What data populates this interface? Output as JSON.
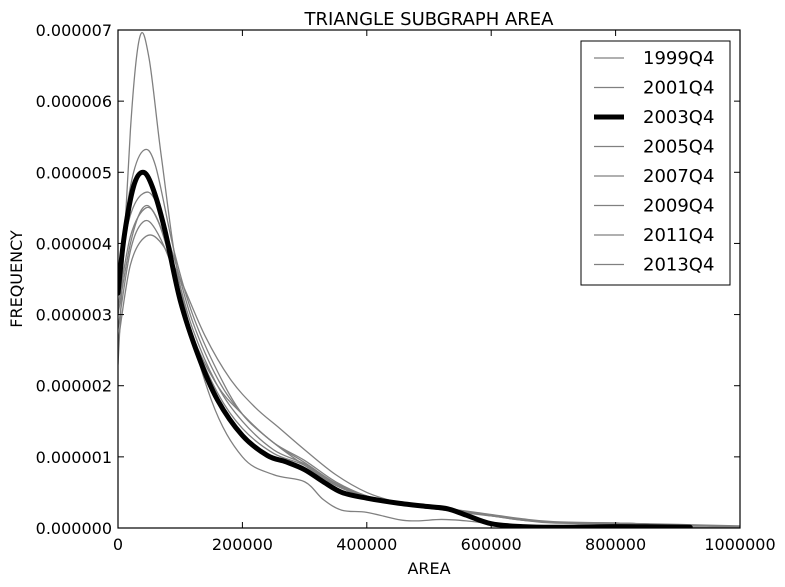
{
  "chart_data": {
    "type": "line",
    "title": "TRIANGLE SUBGRAPH AREA",
    "xlabel": "AREA",
    "ylabel": "FREQUENCY",
    "xlim": [
      0,
      1000000
    ],
    "ylim": [
      0,
      7e-06
    ],
    "x_ticks": [
      0,
      200000,
      400000,
      600000,
      800000,
      1000000
    ],
    "x_tick_labels": [
      "0",
      "200000",
      "400000",
      "600000",
      "800000",
      "1000000"
    ],
    "y_ticks": [
      0,
      1e-06,
      2e-06,
      3e-06,
      4e-06,
      5e-06,
      6e-06,
      7e-06
    ],
    "y_tick_labels": [
      "0.000000",
      "0.000001",
      "0.000002",
      "0.000003",
      "0.000004",
      "0.000005",
      "0.000006",
      "0.000007"
    ],
    "legend_position": "top-right",
    "highlight_color": "#000000",
    "base_color": "#808080",
    "series": [
      {
        "name": "1999Q4",
        "highlight": false,
        "x": [
          0,
          20000,
          35000,
          50000,
          70000,
          100000,
          150000,
          200000,
          250000,
          300000,
          330000,
          360000,
          400000,
          450000,
          480000,
          520000,
          560000,
          600000,
          650000,
          700000,
          800000,
          900000,
          1000000
        ],
        "y": [
          2.3e-06,
          5.6e-06,
          6.9e-06,
          6.6e-06,
          5.2e-06,
          3.4e-06,
          1.8e-06,
          1e-06,
          7.5e-07,
          6.5e-07,
          4e-07,
          2.5e-07,
          2.2e-07,
          1.2e-07,
          1e-07,
          1.2e-07,
          1e-07,
          6e-08,
          3e-08,
          2e-08,
          1e-08,
          1e-08,
          1e-08
        ]
      },
      {
        "name": "2001Q4",
        "highlight": false,
        "x": [
          0,
          20000,
          40000,
          60000,
          90000,
          120000,
          160000,
          200000,
          250000,
          300000,
          350000,
          400000,
          450000,
          500000,
          550000,
          600000,
          650000,
          700000,
          800000,
          900000,
          1000000
        ],
        "y": [
          3.5e-06,
          4.8e-06,
          5.3e-06,
          5.1e-06,
          3.9e-06,
          3e-06,
          2.2e-06,
          1.6e-06,
          1.2e-06,
          8.8e-07,
          6e-07,
          4.3e-07,
          3.4e-07,
          2.8e-07,
          2.2e-07,
          1.7e-07,
          1.2e-07,
          8e-08,
          6e-08,
          4e-08,
          2e-08
        ]
      },
      {
        "name": "2003Q4",
        "highlight": true,
        "x": [
          0,
          10000,
          25000,
          40000,
          55000,
          75000,
          100000,
          130000,
          160000,
          200000,
          240000,
          270000,
          300000,
          330000,
          360000,
          400000,
          450000,
          500000,
          530000,
          560000,
          600000,
          650000,
          700000,
          800000,
          920000
        ],
        "y": [
          3.3e-06,
          4.1e-06,
          4.8e-06,
          5e-06,
          4.8e-06,
          4.2e-06,
          3.2e-06,
          2.4e-06,
          1.8e-06,
          1.3e-06,
          1.02e-06,
          9.3e-07,
          8.2e-07,
          6.5e-07,
          5e-07,
          4.2e-07,
          3.5e-07,
          3e-07,
          2.7e-07,
          1.8e-07,
          6e-08,
          2e-08,
          1e-08,
          2e-08,
          1e-08
        ]
      },
      {
        "name": "2005Q4",
        "highlight": false,
        "x": [
          0,
          20000,
          45000,
          70000,
          100000,
          140000,
          180000,
          220000,
          260000,
          300000,
          350000,
          400000,
          450000,
          500000,
          550000,
          600000,
          650000,
          700000,
          800000,
          900000,
          1000000
        ],
        "y": [
          2.6e-06,
          3.7e-06,
          4.1e-06,
          4e-06,
          3.5e-06,
          2.7e-06,
          2.1e-06,
          1.7e-06,
          1.4e-06,
          1.1e-06,
          7.5e-07,
          5e-07,
          3.6e-07,
          2.8e-07,
          2.3e-07,
          1.7e-07,
          1.1e-07,
          7e-08,
          6e-08,
          4e-08,
          2e-08
        ]
      },
      {
        "name": "2007Q4",
        "highlight": false,
        "x": [
          0,
          20000,
          40000,
          60000,
          90000,
          120000,
          160000,
          200000,
          250000,
          300000,
          350000,
          400000,
          450000,
          500000,
          550000,
          600000,
          650000,
          700000,
          800000,
          900000,
          1000000
        ],
        "y": [
          2.8e-06,
          3.9e-06,
          4.3e-06,
          4.2e-06,
          3.6e-06,
          2.7e-06,
          2e-06,
          1.6e-06,
          1.2e-06,
          9.5e-07,
          6.5e-07,
          4.5e-07,
          3.4e-07,
          2.8e-07,
          2.4e-07,
          1.8e-07,
          1.2e-07,
          8e-08,
          7e-08,
          4e-08,
          2e-08
        ]
      },
      {
        "name": "2009Q4",
        "highlight": false,
        "x": [
          0,
          20000,
          40000,
          60000,
          90000,
          120000,
          160000,
          200000,
          250000,
          300000,
          350000,
          400000,
          450000,
          500000,
          550000,
          600000,
          650000,
          700000,
          800000,
          900000,
          1000000
        ],
        "y": [
          3e-06,
          4e-06,
          4.5e-06,
          4.4e-06,
          3.7e-06,
          2.8e-06,
          2e-06,
          1.5e-06,
          1.1e-06,
          9e-07,
          6.2e-07,
          4.4e-07,
          3.4e-07,
          2.9e-07,
          2.4e-07,
          1.8e-07,
          1.2e-07,
          8e-08,
          7e-08,
          4e-08,
          2e-08
        ]
      },
      {
        "name": "2011Q4",
        "highlight": false,
        "x": [
          0,
          20000,
          45000,
          65000,
          90000,
          120000,
          160000,
          200000,
          250000,
          300000,
          350000,
          400000,
          450000,
          500000,
          550000,
          600000,
          650000,
          700000,
          800000,
          900000,
          1000000
        ],
        "y": [
          3.1e-06,
          4.1e-06,
          4.5e-06,
          4.3e-06,
          3.6e-06,
          2.7e-06,
          1.9e-06,
          1.4e-06,
          1.05e-06,
          8.8e-07,
          6e-07,
          4.3e-07,
          3.3e-07,
          2.8e-07,
          2.3e-07,
          1.7e-07,
          1.1e-07,
          8e-08,
          7e-08,
          4e-08,
          2e-08
        ]
      },
      {
        "name": "2013Q4",
        "highlight": false,
        "x": [
          0,
          20000,
          40000,
          60000,
          90000,
          120000,
          160000,
          200000,
          250000,
          300000,
          350000,
          400000,
          450000,
          500000,
          550000,
          600000,
          650000,
          700000,
          800000,
          900000,
          1000000
        ],
        "y": [
          3.6e-06,
          4.4e-06,
          4.7e-06,
          4.6e-06,
          3.8e-06,
          2.9e-06,
          2.1e-06,
          1.6e-06,
          1.2e-06,
          9.2e-07,
          6.3e-07,
          4.5e-07,
          3.5e-07,
          3e-07,
          2.5e-07,
          1.9e-07,
          1.3e-07,
          9e-08,
          7e-08,
          5e-08,
          3e-08
        ]
      }
    ]
  }
}
